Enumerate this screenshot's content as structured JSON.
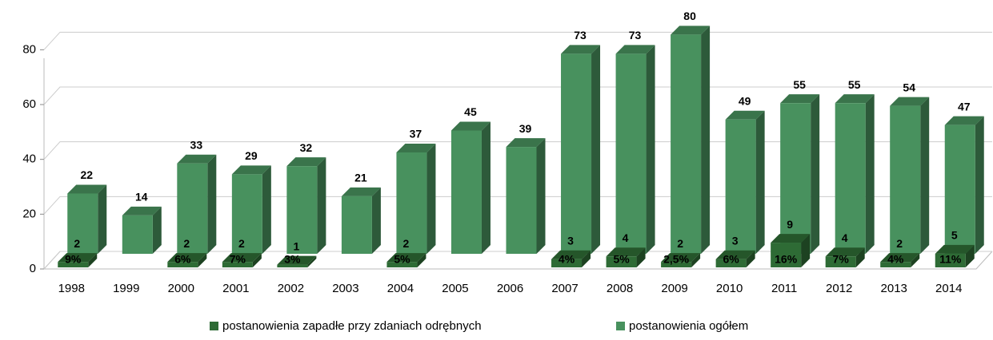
{
  "chart_data": {
    "type": "bar3d",
    "categories": [
      "1998",
      "1999",
      "2000",
      "2001",
      "2002",
      "2003",
      "2004",
      "2005",
      "2006",
      "2007",
      "2008",
      "2009",
      "2010",
      "2011",
      "2012",
      "2013",
      "2014"
    ],
    "series": [
      {
        "name": "postanowienia zapadłe przy zdaniach odrębnych",
        "color": "#2e6b35",
        "values": [
          2,
          null,
          2,
          2,
          1,
          null,
          2,
          null,
          null,
          3,
          4,
          2,
          3,
          9,
          4,
          2,
          5
        ],
        "percent_labels": [
          "9%",
          null,
          "6%",
          "7%",
          "3%",
          null,
          "5%",
          null,
          null,
          "4%",
          "5%",
          "2,5%",
          "6%",
          "16%",
          "7%",
          "4%",
          "11%"
        ]
      },
      {
        "name": "postanowienia ogółem",
        "color": "#48915e",
        "values": [
          22,
          14,
          33,
          29,
          32,
          21,
          37,
          45,
          39,
          73,
          73,
          80,
          49,
          55,
          55,
          54,
          47
        ]
      }
    ],
    "ylim": [
      0,
      90
    ],
    "yticks": [
      0,
      20,
      40,
      60,
      80
    ],
    "grid": true,
    "legend": "bottom"
  }
}
